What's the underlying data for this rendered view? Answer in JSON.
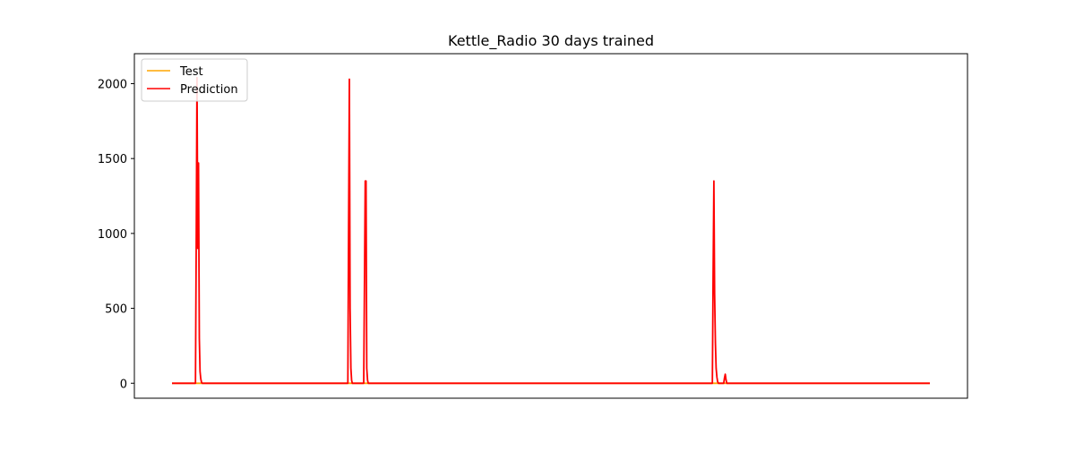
{
  "chart_data": {
    "type": "line",
    "title": "Kettle_Radio 30 days trained",
    "xlabel": "",
    "ylabel": "",
    "x_ticks_visible": false,
    "x_range": [
      0,
      1000
    ],
    "ylim": [
      -100,
      2200
    ],
    "yticks": [
      0,
      500,
      1000,
      1500,
      2000
    ],
    "ytick_labels": [
      "0",
      "500",
      "1000",
      "1500",
      "2000"
    ],
    "grid": false,
    "legend": {
      "position": "top-left",
      "entries": [
        "Test",
        "Prediction"
      ]
    },
    "series": [
      {
        "name": "Test",
        "color": "#ffa500",
        "points": [
          [
            0,
            0
          ],
          [
            1000,
            0
          ]
        ]
      },
      {
        "name": "Prediction",
        "color": "#ff0000",
        "points": [
          [
            0,
            0
          ],
          [
            31,
            0
          ],
          [
            32,
            1000
          ],
          [
            33,
            2040
          ],
          [
            34,
            900
          ],
          [
            35,
            1470
          ],
          [
            36,
            300
          ],
          [
            37,
            80
          ],
          [
            38,
            30
          ],
          [
            39,
            5
          ],
          [
            40,
            0
          ],
          [
            232,
            0
          ],
          [
            233,
            1000
          ],
          [
            234,
            2030
          ],
          [
            235,
            500
          ],
          [
            236,
            100
          ],
          [
            237,
            20
          ],
          [
            238,
            0
          ],
          [
            253,
            0
          ],
          [
            254,
            700
          ],
          [
            255,
            1350
          ],
          [
            256,
            1350
          ],
          [
            257,
            100
          ],
          [
            258,
            20
          ],
          [
            259,
            0
          ],
          [
            713,
            0
          ],
          [
            714,
            700
          ],
          [
            715,
            1350
          ],
          [
            716,
            600
          ],
          [
            717,
            270
          ],
          [
            718,
            100
          ],
          [
            719,
            40
          ],
          [
            720,
            10
          ],
          [
            721,
            0
          ],
          [
            728,
            0
          ],
          [
            729,
            35
          ],
          [
            730,
            60
          ],
          [
            731,
            25
          ],
          [
            732,
            0
          ],
          [
            1000,
            0
          ]
        ]
      }
    ]
  }
}
